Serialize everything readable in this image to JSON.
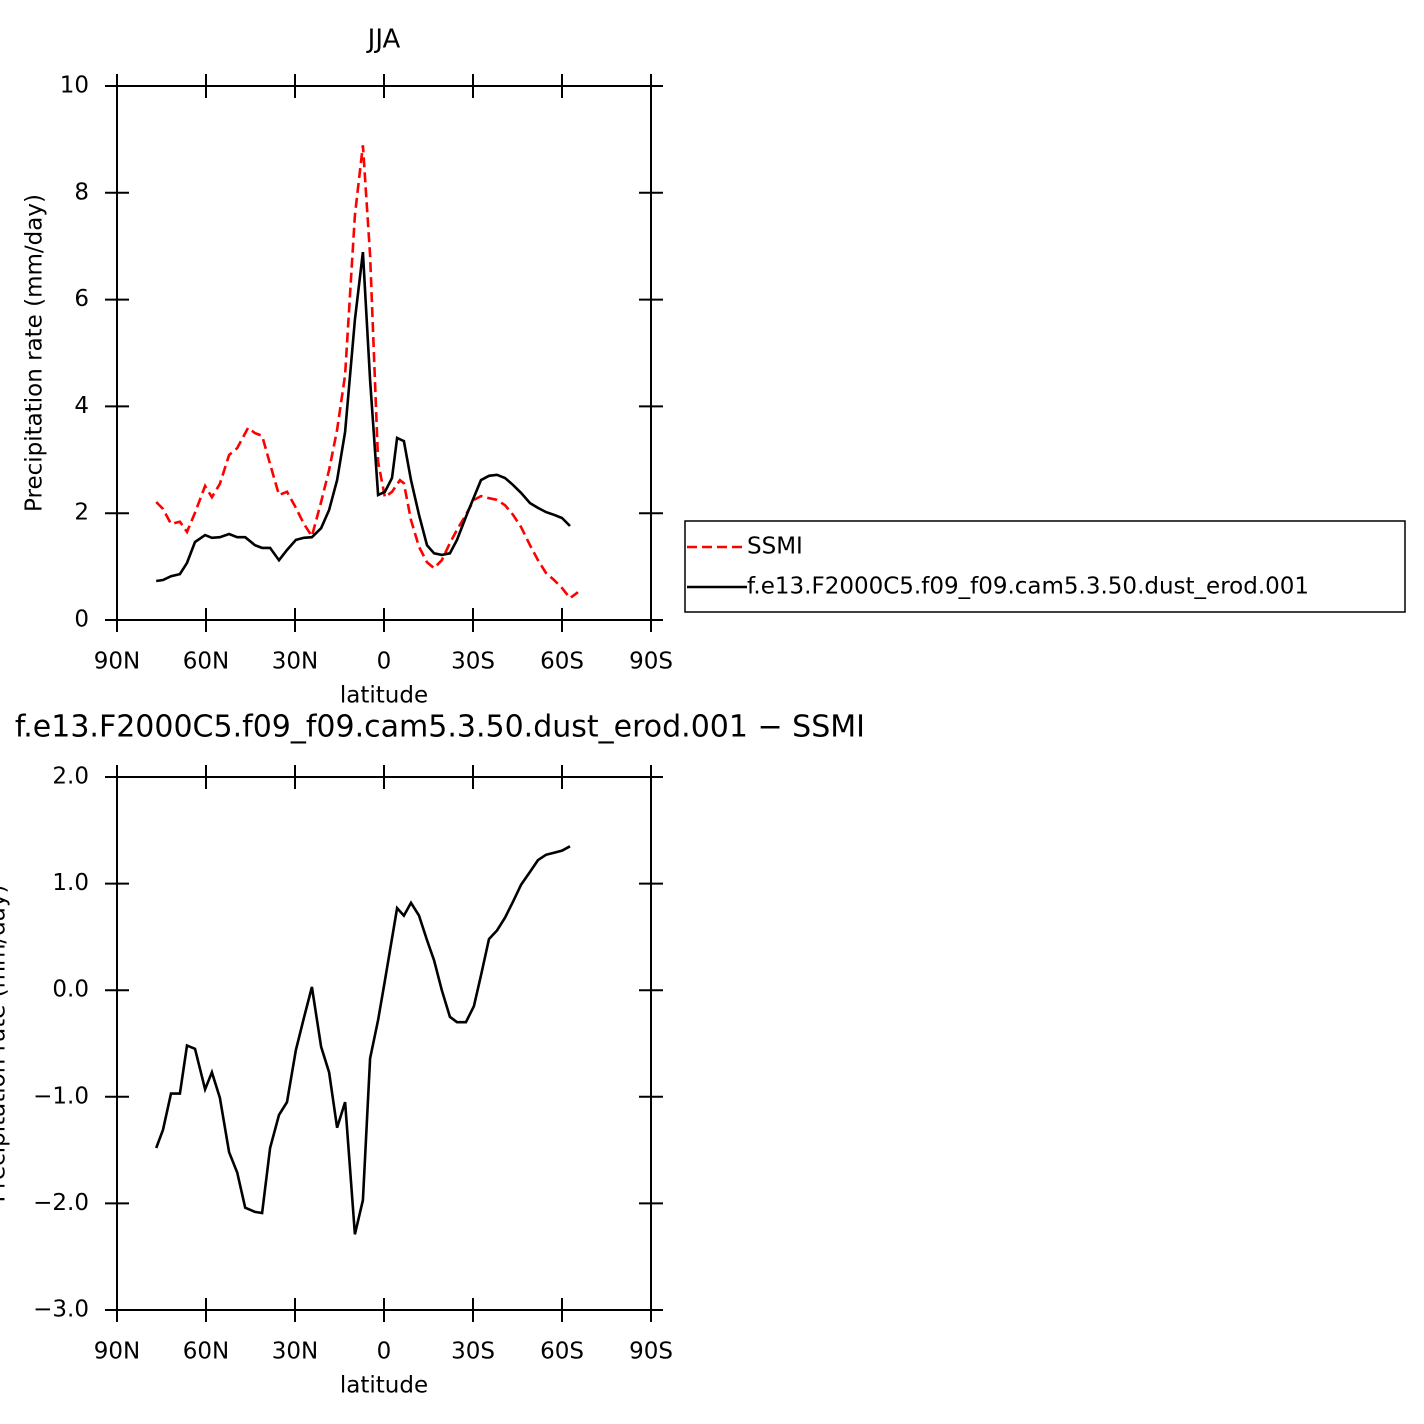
{
  "chart_data": [
    {
      "type": "line",
      "title": "JJA",
      "xlabel": "latitude",
      "ylabel": "Precipitation rate (mm/day)",
      "xlim": [
        90,
        -90
      ],
      "xticks": [
        {
          "value": 90,
          "label": "90N"
        },
        {
          "value": 60,
          "label": "60N"
        },
        {
          "value": 30,
          "label": "30N"
        },
        0,
        {
          "value": -30,
          "label": "30S"
        },
        {
          "value": -60,
          "label": "60S"
        },
        {
          "value": -90,
          "label": "90S"
        }
      ],
      "ylim": [
        0,
        10
      ],
      "yticks": [
        0,
        2,
        4,
        6,
        8,
        10
      ],
      "legend": "right",
      "series": [
        {
          "name": "SSMI",
          "color": "#ff0000",
          "linestyle": "dashed",
          "x": [
            76.8,
            74.5,
            71.8,
            68.8,
            66.4,
            63.7,
            60.3,
            58.0,
            55.3,
            52.2,
            49.5,
            45.8,
            43.5,
            41.1,
            38.4,
            35.4,
            32.7,
            29.7,
            27.0,
            24.3,
            21.2,
            18.5,
            15.8,
            13.1,
            9.8,
            7.1,
            4.7,
            2.0,
            -0.3,
            -2.7,
            -5.4,
            -6.7,
            -9.1,
            -11.8,
            -14.5,
            -16.9,
            -19.5,
            -22.2,
            -24.6,
            -27.6,
            -30.3,
            -32.7,
            -35.4,
            -38.1,
            -40.8,
            -43.5,
            -46.2,
            -49.2,
            -51.9,
            -54.6,
            -57.3,
            -60.0,
            -62.7,
            -65.4
          ],
          "values": [
            2.21,
            2.08,
            1.8,
            1.84,
            1.65,
            2.01,
            2.51,
            2.3,
            2.55,
            3.09,
            3.22,
            3.6,
            3.5,
            3.45,
            2.92,
            2.34,
            2.4,
            2.1,
            1.8,
            1.57,
            2.21,
            2.81,
            3.56,
            4.59,
            7.58,
            8.89,
            6.83,
            2.96,
            2.3,
            2.4,
            2.62,
            2.56,
            1.87,
            1.37,
            1.08,
            0.97,
            1.12,
            1.44,
            1.69,
            1.97,
            2.25,
            2.32,
            2.28,
            2.25,
            2.15,
            1.97,
            1.74,
            1.4,
            1.12,
            0.88,
            0.75,
            0.6,
            0.41,
            0.52
          ]
        },
        {
          "name": "f.e13.F2000C5.f09_f09.cam5.3.50.dust_erod.001",
          "color": "#000000",
          "linestyle": "solid",
          "x": [
            76.8,
            74.5,
            71.8,
            68.8,
            66.4,
            63.7,
            60.3,
            58.0,
            55.3,
            52.2,
            49.5,
            46.8,
            43.5,
            41.1,
            38.4,
            35.4,
            32.7,
            29.7,
            27.0,
            24.3,
            21.2,
            18.5,
            15.8,
            13.1,
            9.8,
            7.1,
            4.7,
            2.0,
            -0.3,
            -2.7,
            -4.4,
            -6.7,
            -9.1,
            -11.8,
            -14.5,
            -16.9,
            -19.5,
            -22.2,
            -24.6,
            -27.6,
            -30.3,
            -32.7,
            -35.4,
            -38.1,
            -40.8,
            -43.5,
            -46.2,
            -49.2,
            -51.9,
            -54.6,
            -57.3,
            -60.0,
            -62.7
          ],
          "values": [
            0.73,
            0.75,
            0.82,
            0.86,
            1.07,
            1.46,
            1.59,
            1.54,
            1.55,
            1.61,
            1.55,
            1.55,
            1.4,
            1.35,
            1.35,
            1.12,
            1.31,
            1.5,
            1.54,
            1.55,
            1.72,
            2.06,
            2.62,
            3.52,
            5.62,
            6.89,
            4.49,
            2.34,
            2.4,
            2.66,
            3.41,
            3.35,
            2.62,
            1.97,
            1.4,
            1.25,
            1.22,
            1.25,
            1.5,
            1.93,
            2.3,
            2.62,
            2.7,
            2.72,
            2.66,
            2.53,
            2.38,
            2.19,
            2.1,
            2.02,
            1.97,
            1.91,
            1.76
          ]
        }
      ]
    },
    {
      "type": "line",
      "title": "f.e13.F2000C5.f09_f09.cam5.3.50.dust_erod.001 − SSMI",
      "xlabel": "latitude",
      "ylabel": "Precipitation rate (mm/day)",
      "xlim": [
        90,
        -90
      ],
      "xticks": [
        {
          "value": 90,
          "label": "90N"
        },
        {
          "value": 60,
          "label": "60N"
        },
        {
          "value": 30,
          "label": "30N"
        },
        0,
        {
          "value": -30,
          "label": "30S"
        },
        {
          "value": -60,
          "label": "60S"
        },
        {
          "value": -90,
          "label": "90S"
        }
      ],
      "ylim": [
        -3,
        2
      ],
      "yticks": [
        {
          "value": 2,
          "label": "2.0"
        },
        {
          "value": 1,
          "label": "1.0"
        },
        {
          "value": 0,
          "label": "0.0"
        },
        {
          "value": -1,
          "label": "−1.0"
        },
        {
          "value": -2,
          "label": "−2.0"
        },
        {
          "value": -3,
          "label": "−3.0"
        }
      ],
      "series": [
        {
          "color": "#000000",
          "linestyle": "solid",
          "x": [
            76.8,
            74.5,
            71.8,
            68.8,
            66.4,
            63.7,
            60.3,
            58.0,
            55.3,
            52.2,
            49.5,
            46.8,
            43.5,
            41.1,
            38.4,
            35.4,
            32.7,
            29.7,
            27.0,
            24.3,
            21.2,
            18.5,
            15.8,
            13.1,
            9.8,
            7.1,
            4.7,
            2.0,
            -0.3,
            -4.4,
            -6.7,
            -9.1,
            -11.8,
            -14.5,
            -16.9,
            -19.5,
            -22.2,
            -24.6,
            -27.6,
            -30.3,
            -32.7,
            -35.4,
            -38.1,
            -40.8,
            -43.5,
            -46.2,
            -49.2,
            -51.9,
            -54.6,
            -57.3,
            -60.0,
            -62.7
          ],
          "values": [
            -1.48,
            -1.31,
            -0.97,
            -0.97,
            -0.52,
            -0.55,
            -0.93,
            -0.77,
            -1.01,
            -1.52,
            -1.71,
            -2.04,
            -2.08,
            -2.09,
            -1.48,
            -1.17,
            -1.05,
            -0.56,
            -0.26,
            0.03,
            -0.53,
            -0.77,
            -1.29,
            -1.05,
            -2.29,
            -1.97,
            -0.64,
            -0.28,
            0.09,
            0.77,
            0.7,
            0.82,
            0.7,
            0.47,
            0.28,
            0.0,
            -0.25,
            -0.3,
            -0.3,
            -0.15,
            0.14,
            0.48,
            0.56,
            0.68,
            0.83,
            0.99,
            1.11,
            1.22,
            1.27,
            1.29,
            1.31,
            1.35
          ]
        }
      ]
    }
  ]
}
